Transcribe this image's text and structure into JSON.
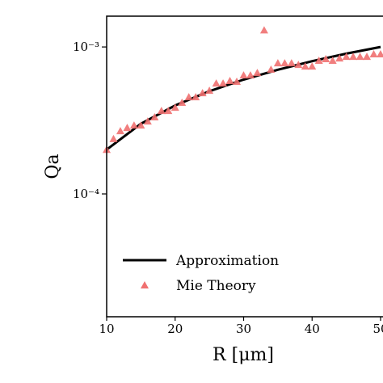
{
  "chart_data": {
    "type": "line",
    "xlabel": "R [μm]",
    "ylabel": "Qa",
    "xlim": [
      10,
      50
    ],
    "xticks": [
      10,
      20,
      30,
      40,
      50
    ],
    "ylim": [
      1.46e-05,
      0.00162
    ],
    "yscale": "log",
    "yticks": [
      {
        "value": 0.0001,
        "label": "10⁻⁴"
      },
      {
        "value": 0.001,
        "label": "10⁻³"
      }
    ],
    "legend": "lower left",
    "series": [
      {
        "name": "Approximation",
        "type": "line",
        "color": "#000000",
        "x": [
          10,
          15,
          20,
          25,
          30,
          35,
          40,
          45,
          50
        ],
        "values": [
          0.0002,
          0.0003,
          0.0004,
          0.0005,
          0.0006,
          0.0007,
          0.0008,
          0.0009,
          0.001
        ]
      },
      {
        "name": "Mie Theory",
        "type": "scatter",
        "color": "#f07070",
        "x": [
          10,
          11,
          12,
          13,
          14,
          15,
          16,
          17,
          18,
          19,
          20,
          21,
          22,
          23,
          24,
          25,
          26,
          27,
          28,
          29,
          30,
          31,
          32,
          33,
          34,
          35,
          36,
          37,
          38,
          39,
          40,
          41,
          42,
          43,
          44,
          45,
          46,
          47,
          48,
          49,
          50
        ],
        "values": [
          0.0002,
          0.000237,
          0.000268,
          0.000282,
          0.000293,
          0.000293,
          0.000312,
          0.000333,
          0.000368,
          0.000368,
          0.000387,
          0.000418,
          0.000456,
          0.000456,
          0.000486,
          0.000505,
          0.000566,
          0.000566,
          0.000588,
          0.000581,
          0.000642,
          0.000642,
          0.000667,
          0.0013,
          0.000702,
          0.000776,
          0.000776,
          0.000776,
          0.000757,
          0.000738,
          0.000738,
          0.000807,
          0.000828,
          0.000807,
          0.000838,
          0.000859,
          0.000859,
          0.000859,
          0.000859,
          0.000893,
          0.000893
        ]
      }
    ]
  }
}
